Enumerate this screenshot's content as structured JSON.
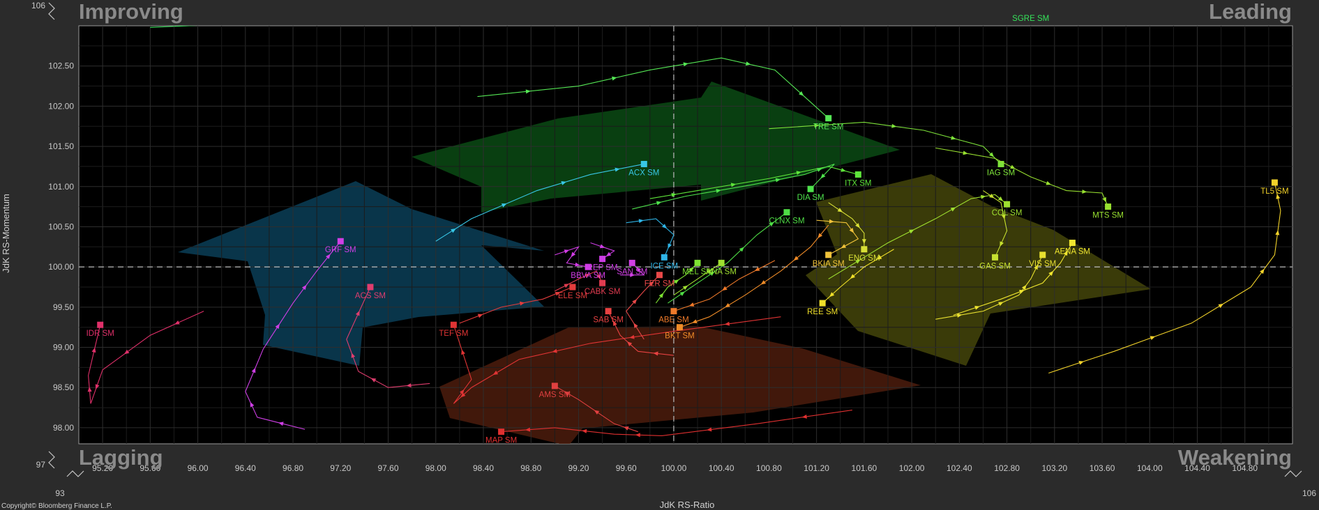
{
  "chart_data": {
    "type": "scatter",
    "title": "",
    "xlabel": "JdK RS-Ratio",
    "ylabel": "JdK RS-Momentum",
    "xlim": [
      95.0,
      105.2
    ],
    "ylim": [
      97.8,
      103.0
    ],
    "x_ticks": [
      "95.20",
      "95.60",
      "96.00",
      "96.40",
      "96.80",
      "97.20",
      "97.60",
      "98.00",
      "98.40",
      "98.80",
      "99.20",
      "99.60",
      "100.00",
      "100.40",
      "100.80",
      "101.20",
      "101.60",
      "102.00",
      "102.40",
      "102.80",
      "103.20",
      "103.60",
      "104.00",
      "104.40",
      "104.80"
    ],
    "y_ticks": [
      "98.00",
      "98.50",
      "99.00",
      "99.50",
      "100.00",
      "100.50",
      "101.00",
      "101.50",
      "102.00",
      "102.50"
    ],
    "x_break_labels": [
      "93",
      "106"
    ],
    "y_break_labels": [
      "106",
      "97"
    ],
    "quadrants": {
      "top_left": "Improving",
      "top_right": "Leading",
      "bottom_left": "Lagging",
      "bottom_right": "Weakening"
    },
    "copyright": "Copyright© Bloomberg Finance L.P.",
    "center": [
      100.0,
      100.0
    ],
    "grid": true,
    "series": [
      {
        "name": "SGRE SM",
        "color": "#35e35a",
        "points": [
          [
            95.6,
            102.98
          ],
          [
            97.2,
            103.08
          ],
          [
            98.8,
            103.18
          ],
          [
            100.0,
            103.2
          ],
          [
            101.2,
            103.2
          ],
          [
            102.5,
            103.2
          ],
          [
            103.0,
            103.2
          ]
        ]
      },
      {
        "name": "TRE SM",
        "color": "#55e855",
        "points": [
          [
            98.35,
            102.12
          ],
          [
            99.2,
            102.25
          ],
          [
            99.8,
            102.45
          ],
          [
            100.4,
            102.6
          ],
          [
            100.85,
            102.45
          ],
          [
            101.3,
            101.85
          ]
        ]
      },
      {
        "name": "IAG SM",
        "color": "#7ee33a",
        "points": [
          [
            100.8,
            101.72
          ],
          [
            101.6,
            101.8
          ],
          [
            102.1,
            101.7
          ],
          [
            102.6,
            101.5
          ],
          [
            102.75,
            101.28
          ]
        ]
      },
      {
        "name": "MTS SM",
        "color": "#98e030",
        "points": [
          [
            102.2,
            101.48
          ],
          [
            102.7,
            101.35
          ],
          [
            103.0,
            101.12
          ],
          [
            103.3,
            100.95
          ],
          [
            103.6,
            100.92
          ],
          [
            103.65,
            100.75
          ]
        ]
      },
      {
        "name": "ITX SM",
        "color": "#5ee53a",
        "points": [
          [
            99.8,
            100.85
          ],
          [
            100.2,
            100.95
          ],
          [
            100.8,
            101.1
          ],
          [
            101.3,
            101.25
          ],
          [
            101.55,
            101.15
          ]
        ]
      },
      {
        "name": "DIA SM",
        "color": "#4ee24c",
        "points": [
          [
            99.65,
            100.72
          ],
          [
            100.1,
            100.88
          ],
          [
            100.65,
            101.02
          ],
          [
            101.1,
            101.15
          ],
          [
            101.35,
            101.28
          ],
          [
            101.15,
            100.97
          ]
        ]
      },
      {
        "name": "CLNX SM",
        "color": "#4fde46",
        "points": [
          [
            99.95,
            99.55
          ],
          [
            100.2,
            99.8
          ],
          [
            100.45,
            100.05
          ],
          [
            100.7,
            100.4
          ],
          [
            100.95,
            100.68
          ]
        ]
      },
      {
        "name": "ACX SM",
        "color": "#38c7e6",
        "points": [
          [
            98.0,
            100.32
          ],
          [
            98.3,
            100.6
          ],
          [
            98.85,
            100.95
          ],
          [
            99.3,
            101.15
          ],
          [
            99.75,
            101.28
          ]
        ]
      },
      {
        "name": "ICE SM",
        "color": "#2fb4e6",
        "points": [
          [
            99.6,
            100.55
          ],
          [
            99.85,
            100.6
          ],
          [
            100.0,
            100.4
          ],
          [
            99.92,
            100.12
          ]
        ]
      },
      {
        "name": "GRF SM",
        "color": "#cf3fe6",
        "points": [
          [
            96.9,
            97.98
          ],
          [
            96.5,
            98.13
          ],
          [
            96.4,
            98.45
          ],
          [
            96.55,
            98.98
          ],
          [
            96.8,
            99.55
          ],
          [
            97.0,
            99.95
          ],
          [
            97.2,
            100.32
          ]
        ]
      },
      {
        "name": "ACS SM",
        "color": "#e03d6e",
        "points": [
          [
            97.95,
            98.55
          ],
          [
            97.6,
            98.5
          ],
          [
            97.35,
            98.7
          ],
          [
            97.25,
            99.1
          ],
          [
            97.45,
            99.75
          ]
        ]
      },
      {
        "name": "IDR SM",
        "color": "#e0306a",
        "points": [
          [
            96.05,
            99.45
          ],
          [
            95.6,
            99.15
          ],
          [
            95.2,
            98.72
          ],
          [
            95.1,
            98.3
          ],
          [
            95.08,
            98.65
          ],
          [
            95.18,
            99.28
          ]
        ]
      },
      {
        "name": "MAP SM",
        "color": "#e03030",
        "points": [
          [
            101.5,
            98.22
          ],
          [
            100.7,
            98.05
          ],
          [
            99.9,
            97.9
          ],
          [
            99.5,
            97.92
          ],
          [
            99.0,
            98.0
          ],
          [
            98.55,
            97.95
          ]
        ]
      },
      {
        "name": "AMS SM",
        "color": "#e04040",
        "points": [
          [
            99.7,
            97.95
          ],
          [
            99.5,
            98.05
          ],
          [
            99.2,
            98.35
          ],
          [
            99.0,
            98.52
          ]
        ]
      },
      {
        "name": "TEF SM",
        "color": "#e03434",
        "points": [
          [
            100.9,
            99.38
          ],
          [
            100.0,
            99.2
          ],
          [
            99.3,
            99.05
          ],
          [
            98.7,
            98.85
          ],
          [
            98.3,
            98.5
          ],
          [
            98.15,
            98.3
          ],
          [
            98.3,
            98.6
          ],
          [
            98.15,
            99.28
          ]
        ]
      },
      {
        "name": "ELE SM",
        "color": "#e43c3c",
        "points": [
          [
            98.2,
            99.3
          ],
          [
            98.55,
            99.5
          ],
          [
            98.9,
            99.6
          ],
          [
            99.15,
            99.75
          ]
        ]
      },
      {
        "name": "SAB SM",
        "color": "#e84242",
        "points": [
          [
            100.0,
            98.9
          ],
          [
            99.7,
            98.95
          ],
          [
            99.55,
            99.15
          ],
          [
            99.45,
            99.45
          ]
        ]
      },
      {
        "name": "FER SM",
        "color": "#e84848",
        "points": [
          [
            99.75,
            99.1
          ],
          [
            99.6,
            99.45
          ],
          [
            99.75,
            99.7
          ],
          [
            99.88,
            99.9
          ]
        ]
      },
      {
        "name": "CABK SM",
        "color": "#e13c50",
        "points": [
          [
            99.0,
            99.7
          ],
          [
            99.2,
            99.85
          ],
          [
            99.35,
            99.95
          ],
          [
            99.4,
            99.8
          ]
        ]
      },
      {
        "name": "BBVA SM",
        "color": "#d23ce6",
        "points": [
          [
            99.0,
            100.15
          ],
          [
            99.2,
            100.25
          ],
          [
            99.1,
            100.05
          ],
          [
            99.28,
            100.0
          ]
        ]
      },
      {
        "name": "REP SM",
        "color": "#cc3de4",
        "points": [
          [
            99.3,
            100.3
          ],
          [
            99.5,
            100.2
          ],
          [
            99.4,
            100.1
          ]
        ]
      },
      {
        "name": "SAN SM",
        "color": "#d240e6",
        "points": [
          [
            99.55,
            99.9
          ],
          [
            99.75,
            99.9
          ],
          [
            99.65,
            100.05
          ]
        ]
      },
      {
        "name": "MEL SM",
        "color": "#7ee333",
        "points": [
          [
            99.85,
            99.55
          ],
          [
            99.95,
            99.75
          ],
          [
            100.1,
            99.9
          ],
          [
            100.2,
            100.05
          ]
        ]
      },
      {
        "name": "ANA SM",
        "color": "#a0e030",
        "points": [
          [
            100.0,
            99.65
          ],
          [
            100.2,
            99.85
          ],
          [
            100.4,
            100.05
          ]
        ]
      },
      {
        "name": "ABE SM",
        "color": "#f07a2a",
        "points": [
          [
            100.85,
            100.08
          ],
          [
            100.55,
            99.85
          ],
          [
            100.3,
            99.6
          ],
          [
            100.0,
            99.45
          ]
        ]
      },
      {
        "name": "BKT SM",
        "color": "#f08c28",
        "points": [
          [
            101.3,
            100.52
          ],
          [
            101.15,
            100.25
          ],
          [
            100.9,
            99.95
          ],
          [
            100.6,
            99.65
          ],
          [
            100.3,
            99.38
          ],
          [
            100.05,
            99.25
          ]
        ]
      },
      {
        "name": "BKIA SM",
        "color": "#f0c23a",
        "points": [
          [
            101.2,
            100.58
          ],
          [
            101.45,
            100.55
          ],
          [
            101.55,
            100.35
          ],
          [
            101.3,
            100.15
          ]
        ]
      },
      {
        "name": "ENG SM",
        "color": "#d8e036",
        "points": [
          [
            101.3,
            100.8
          ],
          [
            101.5,
            100.6
          ],
          [
            101.6,
            100.42
          ],
          [
            101.6,
            100.22
          ]
        ]
      },
      {
        "name": "REE SM",
        "color": "#f0e02a",
        "points": [
          [
            101.85,
            100.22
          ],
          [
            101.6,
            100.0
          ],
          [
            101.4,
            99.75
          ],
          [
            101.25,
            99.55
          ]
        ]
      },
      {
        "name": "COL SM",
        "color": "#9fe030",
        "points": [
          [
            101.3,
            99.85
          ],
          [
            101.8,
            100.3
          ],
          [
            102.2,
            100.6
          ],
          [
            102.5,
            100.85
          ],
          [
            102.7,
            100.9
          ],
          [
            102.8,
            100.78
          ]
        ]
      },
      {
        "name": "GAS SM",
        "color": "#c6e030",
        "points": [
          [
            102.6,
            100.95
          ],
          [
            102.75,
            100.8
          ],
          [
            102.8,
            100.45
          ],
          [
            102.7,
            100.12
          ]
        ]
      },
      {
        "name": "VIS SM",
        "color": "#e8e030",
        "points": [
          [
            102.2,
            99.35
          ],
          [
            102.6,
            99.45
          ],
          [
            102.9,
            99.65
          ],
          [
            103.0,
            99.85
          ],
          [
            103.1,
            100.15
          ]
        ]
      },
      {
        "name": "AENA SM",
        "color": "#f0e630",
        "points": [
          [
            102.35,
            99.4
          ],
          [
            102.75,
            99.6
          ],
          [
            103.1,
            99.8
          ],
          [
            103.25,
            100.05
          ],
          [
            103.35,
            100.3
          ]
        ]
      },
      {
        "name": "TL5 SM",
        "color": "#f2d22a",
        "points": [
          [
            103.15,
            98.68
          ],
          [
            103.7,
            98.95
          ],
          [
            104.35,
            99.3
          ],
          [
            104.85,
            99.75
          ],
          [
            105.05,
            100.15
          ],
          [
            105.1,
            100.7
          ],
          [
            105.05,
            101.05
          ]
        ]
      }
    ]
  }
}
